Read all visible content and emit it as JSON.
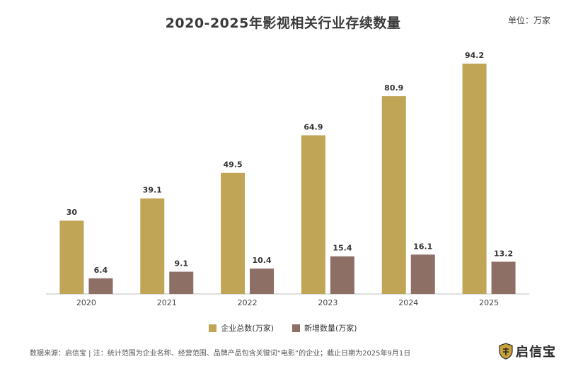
{
  "title": "2020-2025年影视相关行业存续数量",
  "unit_label": "单位：万家",
  "source_note": "数据来源：启信宝 | 注：统计范围为企业名称、经营范围、品牌产品包含关键词“电影”的企业；截止日期为2025年9月1日",
  "logo_text": "启信宝",
  "chart_data": {
    "type": "bar",
    "categories": [
      "2020",
      "2021",
      "2022",
      "2023",
      "2024",
      "2025"
    ],
    "series": [
      {
        "name": "企业总数(万家)",
        "values": [
          30,
          39.1,
          49.5,
          64.9,
          80.9,
          94.2
        ],
        "color": "#c1a557"
      },
      {
        "name": "新增数量(万家)",
        "values": [
          6.4,
          9.1,
          10.4,
          15.4,
          16.1,
          13.2
        ],
        "color": "#8d6f66"
      }
    ],
    "data_labels": [
      [
        "30",
        "39.1",
        "49.5",
        "64.9",
        "80.9",
        "94.2"
      ],
      [
        "6.4",
        "9.1",
        "10.4",
        "15.4",
        "16.1",
        "13.2"
      ]
    ],
    "ylim": [
      0,
      100
    ],
    "grid": false,
    "legend_position": "bottom",
    "xlabel": "",
    "ylabel": ""
  }
}
